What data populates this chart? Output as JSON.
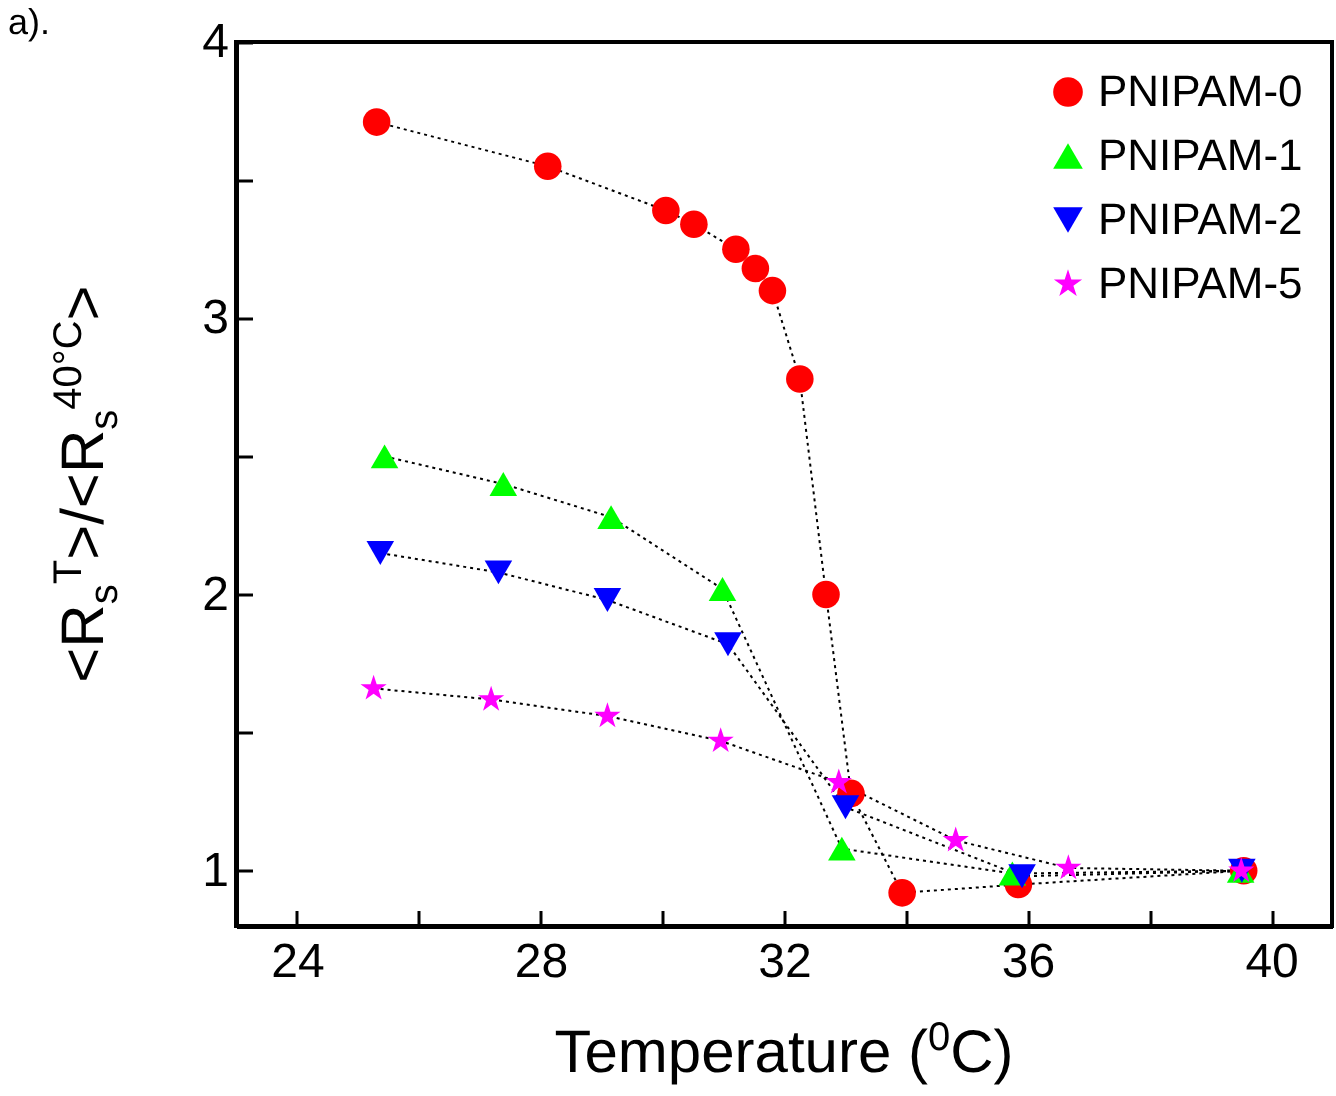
{
  "chart_data": {
    "type": "line",
    "xlabel": "Temperature ($^{0}$C)",
    "ylabel": "<R$_{s}$$^{T}$>/<R$_{s}$$^{40°C}$>",
    "annotations": [
      "a)."
    ],
    "xlim": [
      23,
      41
    ],
    "ylim": [
      0.8,
      4
    ],
    "xticks": [
      24,
      {
        "value": 26,
        "label": null
      },
      28,
      {
        "value": 30,
        "label": null
      },
      32,
      {
        "value": 34,
        "label": null
      },
      36,
      {
        "value": 38,
        "label": null
      },
      40
    ],
    "yticks": [
      1,
      {
        "value": 1.5,
        "label": null
      },
      2,
      {
        "value": 2.5,
        "label": null
      },
      3,
      {
        "value": 3.5,
        "label": null
      },
      4
    ],
    "legend": "top right",
    "line_style": "dotted",
    "series": [
      {
        "name": "PNIPAM-0",
        "color": "#ff0000",
        "marker": "circle",
        "x": [
          25.31,
          28.12,
          30.06,
          30.52,
          31.21,
          31.53,
          31.81,
          32.26,
          32.69,
          33.1,
          33.94,
          35.85,
          39.55
        ],
        "values": [
          3.71,
          3.55,
          3.39,
          3.34,
          3.25,
          3.18,
          3.1,
          2.78,
          2.0,
          1.28,
          0.92,
          0.95,
          1.0
        ]
      },
      {
        "name": "PNIPAM-1",
        "color": "#00ff00",
        "marker": "triangle",
        "x": [
          25.44,
          27.39,
          29.16,
          30.99,
          32.95,
          35.75,
          39.5
        ],
        "values": [
          2.5,
          2.4,
          2.28,
          2.02,
          1.08,
          0.99,
          1.0
        ]
      },
      {
        "name": "PNIPAM-2",
        "color": "#0000ff",
        "marker": "triangle-down",
        "x": [
          25.37,
          27.31,
          29.1,
          31.08,
          33.01,
          35.91,
          39.52
        ],
        "values": [
          2.15,
          2.08,
          1.98,
          1.82,
          1.23,
          0.98,
          1.0
        ]
      },
      {
        "name": "PNIPAM-5",
        "color": "#ff00ff",
        "marker": "star",
        "x": [
          25.26,
          27.19,
          29.1,
          30.96,
          32.9,
          34.82,
          36.67,
          39.51
        ],
        "values": [
          1.66,
          1.62,
          1.56,
          1.47,
          1.32,
          1.11,
          1.01,
          1.0
        ]
      }
    ]
  }
}
